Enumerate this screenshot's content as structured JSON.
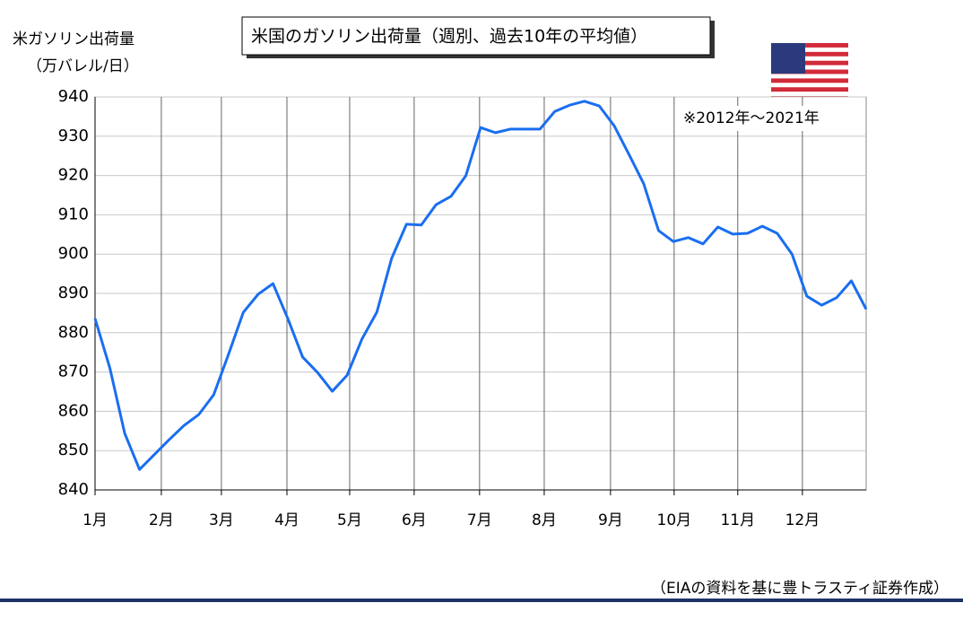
{
  "chart_data": {
    "type": "line",
    "title": "米国のガソリン出荷量（週別、過去10年の平均値）",
    "y_label": [
      "米ガソリン出荷量",
      "（万バレル/日）"
    ],
    "note": "※2012年～2021年",
    "source": "（EIAの資料を基に豊トラスティ証券作成）",
    "x": [
      1,
      2,
      3,
      4,
      5,
      6,
      7,
      8,
      9,
      10,
      11,
      12,
      13,
      14,
      15,
      16,
      17,
      18,
      19,
      20,
      21,
      22,
      23,
      24,
      25,
      26,
      27,
      28,
      29,
      30,
      31,
      32,
      33,
      34,
      35,
      36,
      37,
      38,
      39,
      40,
      41,
      42,
      43,
      44,
      45,
      46,
      47,
      48,
      49,
      50,
      51,
      52,
      53
    ],
    "series": [
      {
        "color": "#1a6ef0",
        "values": [
          883.6,
          871,
          854.4,
          845.2,
          849,
          852.8,
          856.4,
          859.2,
          864.2,
          874.5,
          885.2,
          889.8,
          892.5,
          883.6,
          873.8,
          869.9,
          865.1,
          869.2,
          878.4,
          885.2,
          898.9,
          907.6,
          907.4,
          912.6,
          914.7,
          919.9,
          932.2,
          930.9,
          931.8,
          931.8,
          931.8,
          936.3,
          937.9,
          938.9,
          937.7,
          932.7,
          925.4,
          917.9,
          906,
          903.2,
          904.2,
          902.6,
          906.9,
          905.1,
          905.3,
          907.1,
          905.3,
          900,
          889.3,
          887,
          888.9,
          893.2,
          886
        ]
      }
    ],
    "xlim": [
      1,
      53
    ],
    "xticks": [
      {
        "value": 1,
        "label": "1月"
      },
      {
        "value": 5.47,
        "label": "2月"
      },
      {
        "value": 9.52,
        "label": "3月"
      },
      {
        "value": 13.94,
        "label": "4月"
      },
      {
        "value": 18.17,
        "label": "5月"
      },
      {
        "value": 22.52,
        "label": "6月"
      },
      {
        "value": 26.93,
        "label": "7月"
      },
      {
        "value": 31.29,
        "label": "8月"
      },
      {
        "value": 35.76,
        "label": "9月"
      },
      {
        "value": 40.05,
        "label": "10月"
      },
      {
        "value": 44.34,
        "label": "11月"
      },
      {
        "value": 48.7,
        "label": "12月"
      }
    ],
    "ylim": [
      840,
      940
    ],
    "yticks": [
      840,
      850,
      860,
      870,
      880,
      890,
      900,
      910,
      920,
      930,
      940
    ],
    "grid": true
  }
}
